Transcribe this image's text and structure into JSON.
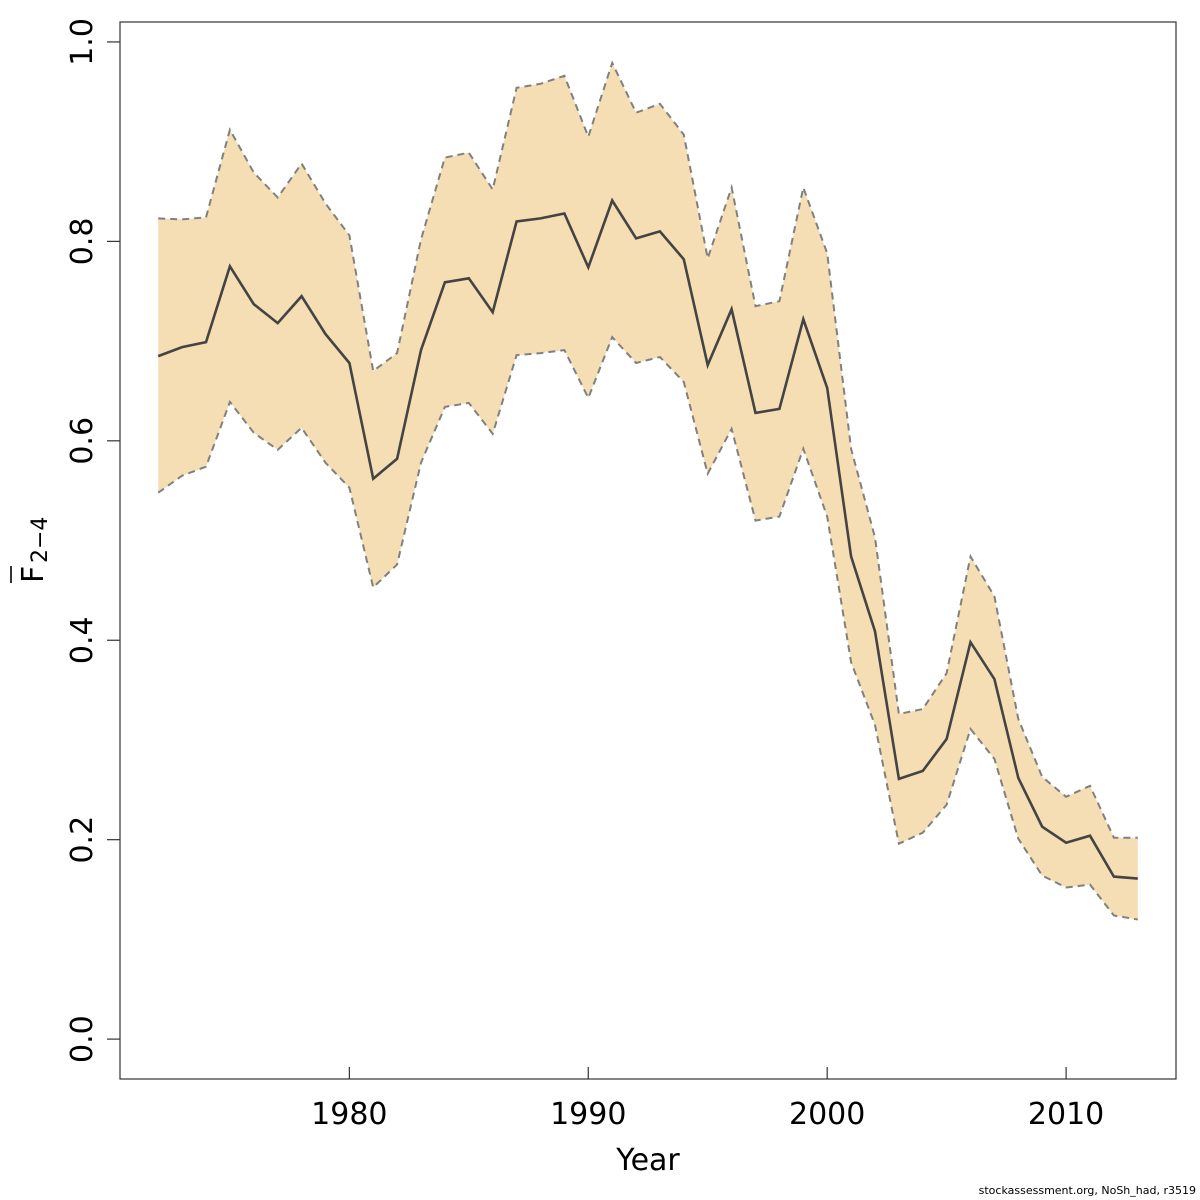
{
  "chart_data": {
    "type": "area",
    "xlabel": "Year",
    "ylabel": {
      "main": "F",
      "subscript": "2−4",
      "overline": true
    },
    "xlim": [
      1970.4,
      2014.6
    ],
    "ylim": [
      -0.04,
      1.02
    ],
    "x_ticks": [
      1980,
      1990,
      2000,
      2010
    ],
    "y_ticks": [
      0.0,
      0.2,
      0.4,
      0.6,
      0.8,
      1.0
    ],
    "y_tick_labels": [
      "0.0",
      "0.2",
      "0.4",
      "0.6",
      "0.8",
      "1.0"
    ],
    "grid": false,
    "colors": {
      "band": "#f5deb3",
      "line": "#444444",
      "bound": "#808080"
    },
    "x": [
      1972,
      1973,
      1974,
      1975,
      1976,
      1977,
      1978,
      1979,
      1980,
      1981,
      1982,
      1983,
      1984,
      1985,
      1986,
      1987,
      1988,
      1989,
      1990,
      1991,
      1992,
      1993,
      1994,
      1995,
      1996,
      1997,
      1998,
      1999,
      2000,
      2001,
      2002,
      2003,
      2004,
      2005,
      2006,
      2007,
      2008,
      2009,
      2010,
      2011,
      2012,
      2013
    ],
    "series": [
      {
        "role": "estimate",
        "values": [
          0.685,
          0.694,
          0.699,
          0.775,
          0.737,
          0.718,
          0.745,
          0.707,
          0.678,
          0.562,
          0.582,
          0.691,
          0.759,
          0.763,
          0.729,
          0.82,
          0.823,
          0.828,
          0.774,
          0.841,
          0.803,
          0.81,
          0.782,
          0.676,
          0.732,
          0.628,
          0.632,
          0.722,
          0.653,
          0.484,
          0.409,
          0.261,
          0.269,
          0.301,
          0.398,
          0.361,
          0.262,
          0.213,
          0.197,
          0.204,
          0.163,
          0.161
        ]
      },
      {
        "role": "upper",
        "values": [
          0.823,
          0.822,
          0.824,
          0.912,
          0.869,
          0.844,
          0.878,
          0.838,
          0.806,
          0.67,
          0.688,
          0.802,
          0.884,
          0.889,
          0.852,
          0.954,
          0.958,
          0.966,
          0.905,
          0.979,
          0.929,
          0.938,
          0.907,
          0.783,
          0.854,
          0.735,
          0.74,
          0.854,
          0.788,
          0.592,
          0.503,
          0.326,
          0.331,
          0.367,
          0.484,
          0.444,
          0.321,
          0.263,
          0.243,
          0.254,
          0.202,
          0.202
        ]
      },
      {
        "role": "lower",
        "values": [
          0.548,
          0.565,
          0.574,
          0.639,
          0.608,
          0.591,
          0.613,
          0.578,
          0.553,
          0.453,
          0.476,
          0.578,
          0.634,
          0.638,
          0.607,
          0.686,
          0.688,
          0.691,
          0.643,
          0.704,
          0.678,
          0.684,
          0.659,
          0.567,
          0.612,
          0.52,
          0.524,
          0.592,
          0.524,
          0.378,
          0.315,
          0.196,
          0.207,
          0.235,
          0.311,
          0.281,
          0.201,
          0.164,
          0.152,
          0.155,
          0.124,
          0.12
        ]
      }
    ]
  },
  "credit": "stockassessment.org, NoSh_had, r3519"
}
